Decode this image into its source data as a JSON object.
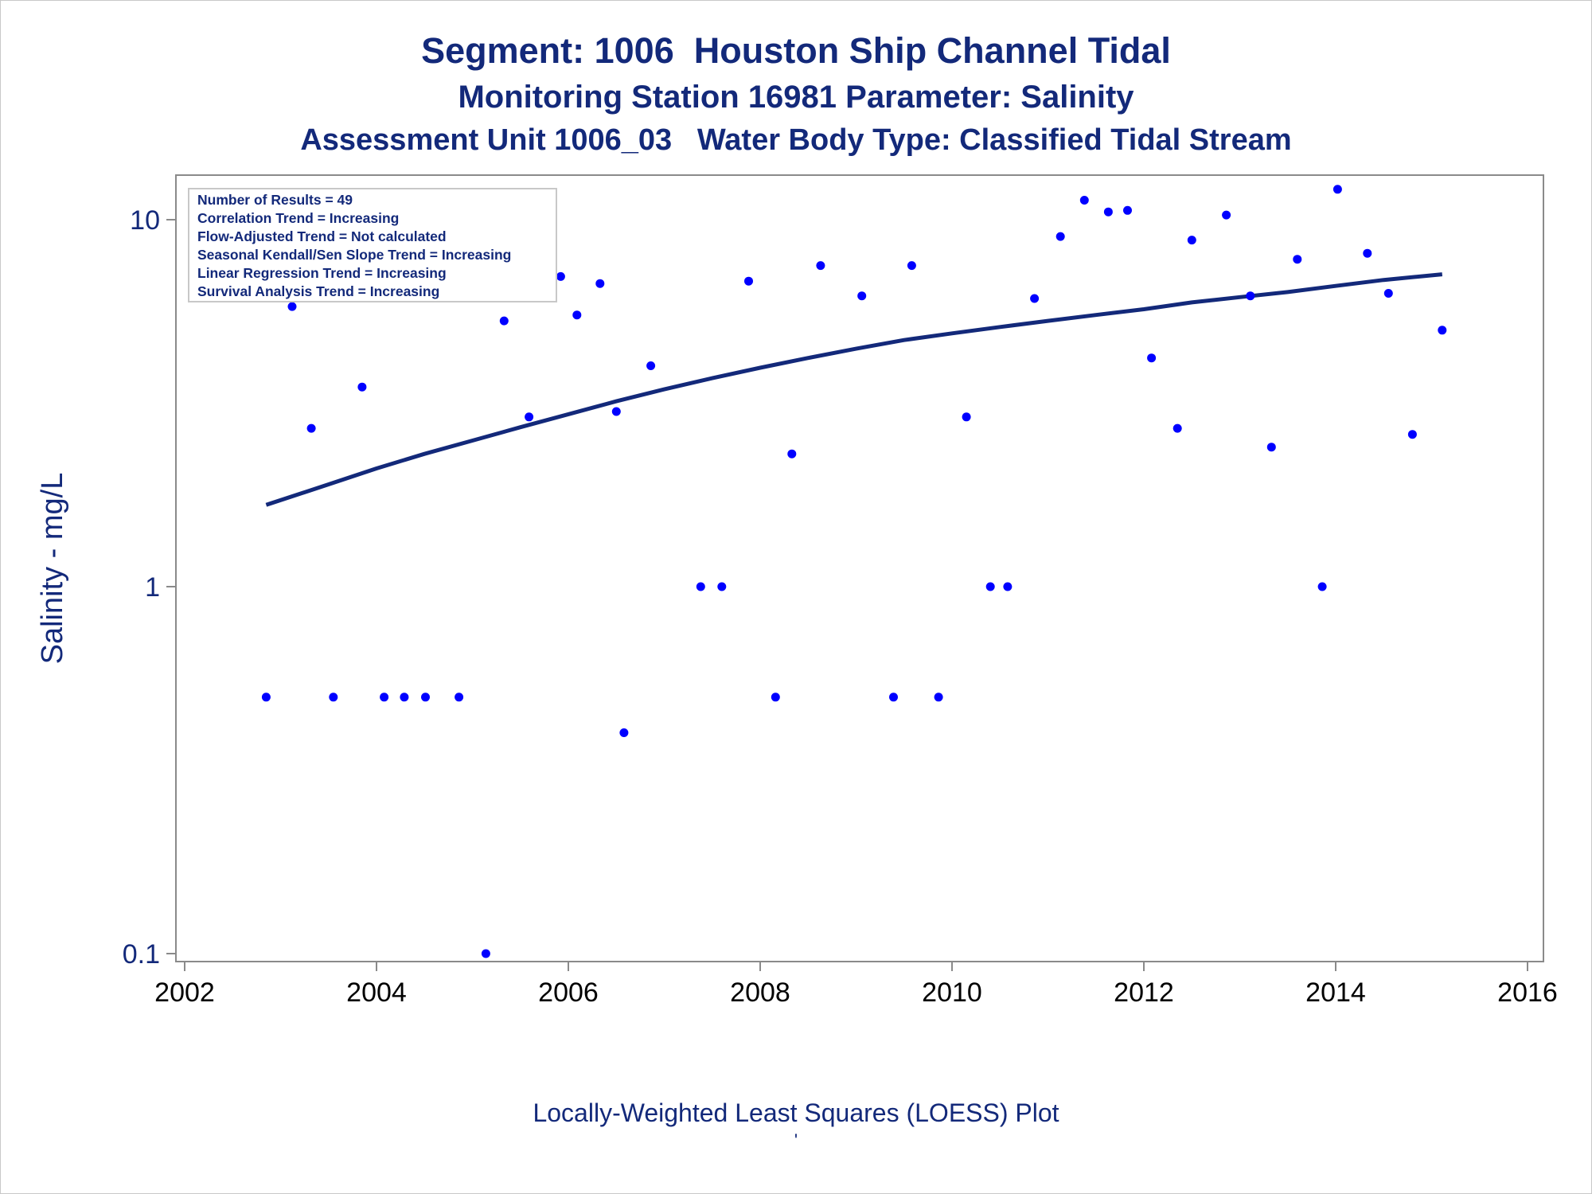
{
  "chart_data": {
    "type": "scatter",
    "title": "Segment: 1006  Houston Ship Channel Tidal",
    "subtitle": "Monitoring Station 16981 Parameter: Salinity",
    "subtitle2": "Assessment Unit 1006_03   Water Body Type: Classified Tidal Stream",
    "xlabel": "",
    "ylabel": "Salinity - mg/L",
    "footnote": "Locally-Weighted Least Squares (LOESS) Plot",
    "footnote_mark": "'",
    "xlim": [
      2002,
      2016
    ],
    "ylim": [
      0.1,
      12
    ],
    "yscale": "log",
    "x_ticks": [
      "2002",
      "2004",
      "2006",
      "2008",
      "2010",
      "2012",
      "2014",
      "2016"
    ],
    "y_ticks": [
      "0.1",
      "1",
      "10"
    ],
    "legend_placement": "top-left",
    "stats": [
      "Number of Results = 49",
      "Correlation Trend = Increasing",
      "Flow-Adjusted Trend = Not calculated",
      "Seasonal Kendall/Sen Slope Trend = Increasing",
      "Linear Regression Trend = Increasing",
      "Survival Analysis Trend = Increasing"
    ],
    "colors": {
      "points": "#0000ff",
      "loess": "#13297a",
      "text": "#13297a",
      "axis": "#8a8a8a"
    },
    "points": [
      {
        "x": 2002.85,
        "y": 0.5
      },
      {
        "x": 2003.12,
        "y": 5.8
      },
      {
        "x": 2003.32,
        "y": 2.7
      },
      {
        "x": 2003.55,
        "y": 0.5
      },
      {
        "x": 2003.85,
        "y": 3.5
      },
      {
        "x": 2004.08,
        "y": 0.5
      },
      {
        "x": 2004.29,
        "y": 0.5
      },
      {
        "x": 2004.51,
        "y": 0.5
      },
      {
        "x": 2004.86,
        "y": 0.5
      },
      {
        "x": 2005.14,
        "y": 0.1
      },
      {
        "x": 2005.33,
        "y": 5.3
      },
      {
        "x": 2005.59,
        "y": 2.9
      },
      {
        "x": 2005.92,
        "y": 7.0
      },
      {
        "x": 2006.09,
        "y": 5.5
      },
      {
        "x": 2006.33,
        "y": 6.7
      },
      {
        "x": 2006.5,
        "y": 3.0
      },
      {
        "x": 2006.58,
        "y": 0.4
      },
      {
        "x": 2006.86,
        "y": 4.0
      },
      {
        "x": 2007.38,
        "y": 1.0
      },
      {
        "x": 2007.6,
        "y": 1.0
      },
      {
        "x": 2007.88,
        "y": 6.8
      },
      {
        "x": 2008.16,
        "y": 0.5
      },
      {
        "x": 2008.33,
        "y": 2.3
      },
      {
        "x": 2008.63,
        "y": 7.5
      },
      {
        "x": 2009.06,
        "y": 6.2
      },
      {
        "x": 2009.39,
        "y": 0.5
      },
      {
        "x": 2009.58,
        "y": 7.5
      },
      {
        "x": 2009.86,
        "y": 0.5
      },
      {
        "x": 2010.15,
        "y": 2.9
      },
      {
        "x": 2010.4,
        "y": 1.0
      },
      {
        "x": 2010.58,
        "y": 1.0
      },
      {
        "x": 2010.86,
        "y": 6.1
      },
      {
        "x": 2011.13,
        "y": 9.0
      },
      {
        "x": 2011.38,
        "y": 11.3
      },
      {
        "x": 2011.63,
        "y": 10.5
      },
      {
        "x": 2011.83,
        "y": 10.6
      },
      {
        "x": 2012.08,
        "y": 4.2
      },
      {
        "x": 2012.35,
        "y": 2.7
      },
      {
        "x": 2012.5,
        "y": 8.8
      },
      {
        "x": 2012.86,
        "y": 10.3
      },
      {
        "x": 2013.11,
        "y": 6.2
      },
      {
        "x": 2013.33,
        "y": 2.4
      },
      {
        "x": 2013.6,
        "y": 7.8
      },
      {
        "x": 2013.86,
        "y": 1.0
      },
      {
        "x": 2014.02,
        "y": 12.1
      },
      {
        "x": 2014.33,
        "y": 8.1
      },
      {
        "x": 2014.55,
        "y": 6.3
      },
      {
        "x": 2014.8,
        "y": 2.6
      },
      {
        "x": 2015.11,
        "y": 5.0
      }
    ],
    "loess": [
      {
        "x": 2002.85,
        "y": 1.67
      },
      {
        "x": 2003.5,
        "y": 1.9
      },
      {
        "x": 2004.0,
        "y": 2.1
      },
      {
        "x": 2004.5,
        "y": 2.3
      },
      {
        "x": 2005.0,
        "y": 2.5
      },
      {
        "x": 2005.5,
        "y": 2.72
      },
      {
        "x": 2006.0,
        "y": 2.95
      },
      {
        "x": 2006.5,
        "y": 3.2
      },
      {
        "x": 2007.0,
        "y": 3.45
      },
      {
        "x": 2007.5,
        "y": 3.7
      },
      {
        "x": 2008.0,
        "y": 3.95
      },
      {
        "x": 2008.5,
        "y": 4.2
      },
      {
        "x": 2009.0,
        "y": 4.45
      },
      {
        "x": 2009.5,
        "y": 4.7
      },
      {
        "x": 2010.0,
        "y": 4.9
      },
      {
        "x": 2010.5,
        "y": 5.1
      },
      {
        "x": 2011.0,
        "y": 5.3
      },
      {
        "x": 2011.5,
        "y": 5.5
      },
      {
        "x": 2012.0,
        "y": 5.7
      },
      {
        "x": 2012.5,
        "y": 5.95
      },
      {
        "x": 2013.0,
        "y": 6.15
      },
      {
        "x": 2013.5,
        "y": 6.35
      },
      {
        "x": 2014.0,
        "y": 6.6
      },
      {
        "x": 2014.5,
        "y": 6.85
      },
      {
        "x": 2015.11,
        "y": 7.1
      }
    ]
  }
}
